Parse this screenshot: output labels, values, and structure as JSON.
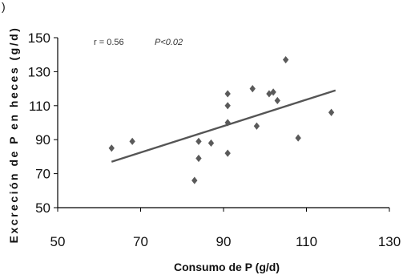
{
  "chart_data": {
    "type": "scatter",
    "corner_label": ")",
    "xlabel": "Consumo de P (g/d)",
    "ylabel": "Excreción de P en heces (g/d)",
    "xlim": [
      50,
      130
    ],
    "ylim": [
      50,
      150
    ],
    "x_ticks": [
      50,
      70,
      90,
      110,
      130
    ],
    "y_ticks": [
      50,
      70,
      90,
      110,
      130,
      150
    ],
    "annotations": {
      "r": "r = 0.56",
      "p": "P<0.02"
    },
    "point_color": "#5a5a5a",
    "line_color": "#555555",
    "series": [
      {
        "points": [
          [
            63,
            85
          ],
          [
            68,
            89
          ],
          [
            83,
            66
          ],
          [
            84,
            79
          ],
          [
            84,
            89
          ],
          [
            87,
            88
          ],
          [
            91,
            82
          ],
          [
            91,
            100
          ],
          [
            91,
            110
          ],
          [
            91,
            117
          ],
          [
            97,
            120
          ],
          [
            98,
            98
          ],
          [
            101,
            117
          ],
          [
            102,
            118
          ],
          [
            103,
            113
          ],
          [
            105,
            137
          ],
          [
            108,
            91
          ],
          [
            116,
            106
          ]
        ]
      }
    ],
    "trendline": {
      "x": [
        63,
        117
      ],
      "y": [
        77,
        119
      ]
    }
  }
}
